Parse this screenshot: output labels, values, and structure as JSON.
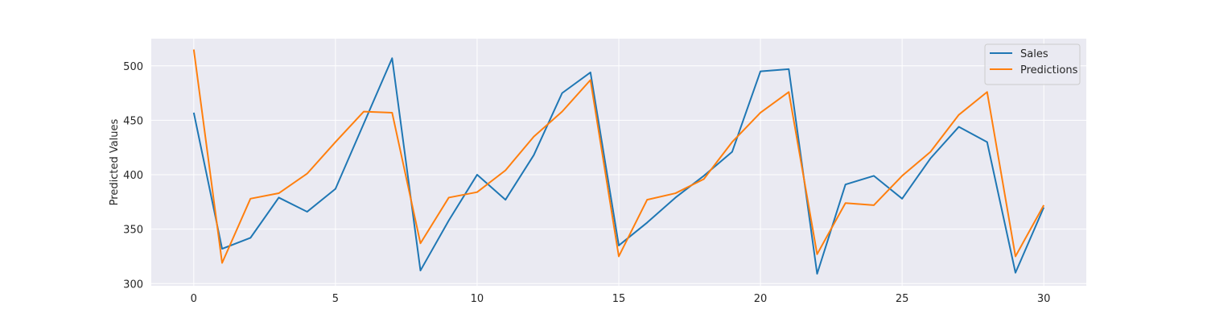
{
  "chart_data": {
    "type": "line",
    "title": "",
    "xlabel": "",
    "ylabel": "Predicted Values",
    "x": [
      0,
      1,
      2,
      3,
      4,
      5,
      6,
      7,
      8,
      9,
      10,
      11,
      12,
      13,
      14,
      15,
      16,
      17,
      18,
      19,
      20,
      21,
      22,
      23,
      24,
      25,
      26,
      27,
      28,
      29,
      30
    ],
    "xlim": [
      -1.5,
      31.5
    ],
    "ylim": [
      298,
      525
    ],
    "xticks": [
      0,
      5,
      10,
      15,
      20,
      25,
      30
    ],
    "yticks": [
      300,
      350,
      400,
      450,
      500
    ],
    "grid": true,
    "legend_position": "top-right",
    "series": [
      {
        "name": "Sales",
        "color": "#1f77b4",
        "values": [
          457,
          332,
          342,
          379,
          366,
          387,
          447,
          507,
          312,
          358,
          400,
          377,
          418,
          475,
          494,
          335,
          356,
          379,
          399,
          421,
          495,
          497,
          309,
          391,
          399,
          378,
          415,
          444,
          430,
          310,
          370
        ]
      },
      {
        "name": "Predictions",
        "color": "#ff7f0e",
        "values": [
          515,
          319,
          378,
          383,
          401,
          430,
          458,
          457,
          337,
          379,
          384,
          404,
          435,
          458,
          487,
          325,
          377,
          383,
          396,
          430,
          457,
          476,
          327,
          374,
          372,
          399,
          421,
          455,
          476,
          325,
          372
        ]
      }
    ]
  },
  "colors": {
    "plot_background": "#eaeaf2",
    "grid": "#ffffff"
  }
}
